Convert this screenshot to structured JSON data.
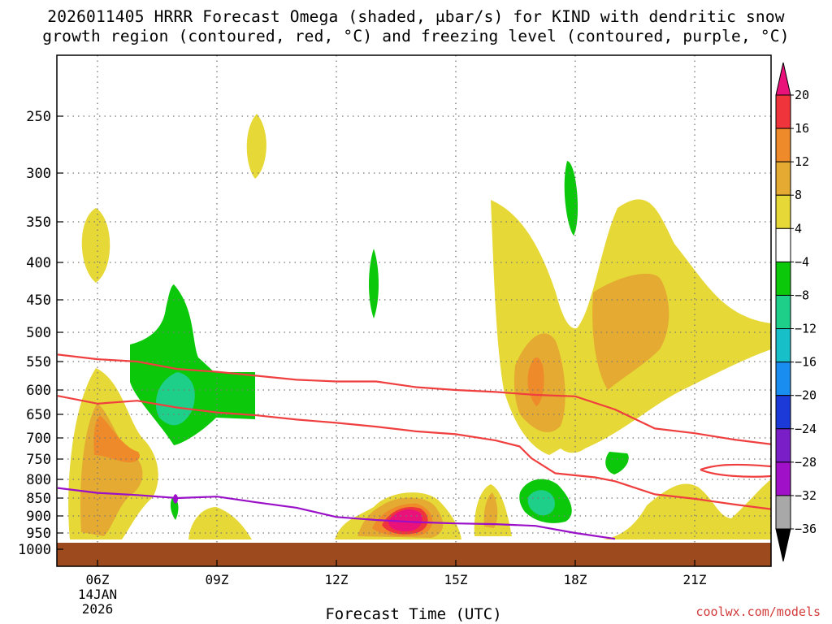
{
  "title_line1": "2026011405 HRRR Forecast Omega (shaded, μbar/s) for KIND with dendritic snow",
  "title_line2": "growth region (contoured, red, °C) and freezing level (contoured, purple, °C)",
  "credit": "coolwx.com/models",
  "colors": {
    "ground": "#9c4a1e",
    "dgz_contour": "#ef3f3f",
    "freezing_level": "#9a0fc8",
    "grid": "#777777"
  },
  "chart_data": {
    "type": "time-height",
    "xlabel": "Forecast Time (UTC)",
    "x_ticks": [
      {
        "hour": 6,
        "label": "06Z",
        "date_line1": "14JAN",
        "date_line2": "2026"
      },
      {
        "hour": 9,
        "label": "09Z"
      },
      {
        "hour": 12,
        "label": "12Z"
      },
      {
        "hour": 15,
        "label": "15Z"
      },
      {
        "hour": 18,
        "label": "18Z"
      },
      {
        "hour": 21,
        "label": "21Z"
      }
    ],
    "xlim_hours": [
      5,
      23
    ],
    "y_ticks_hpa": [
      250,
      300,
      350,
      400,
      450,
      500,
      550,
      600,
      650,
      700,
      750,
      800,
      850,
      900,
      950,
      1000
    ],
    "y_ticks": [
      "250",
      "300",
      "350",
      "400",
      "450",
      "500",
      "550",
      "600",
      "650",
      "700",
      "750",
      "800",
      "850",
      "900",
      "950",
      "1000"
    ],
    "ylim_hpa": [
      1000,
      200
    ],
    "surface_pressure_hpa": 970,
    "colorbar": {
      "units": "μbar/s",
      "labels": [
        "20",
        "16",
        "12",
        "8",
        "4",
        "−4",
        "−8",
        "−12",
        "−16",
        "−20",
        "−24",
        "−28",
        "−32",
        "−36"
      ],
      "bands": [
        {
          "from": 16,
          "to": 20,
          "color": "#f0343c"
        },
        {
          "from": 12,
          "to": 16,
          "color": "#ee8a2a"
        },
        {
          "from": 8,
          "to": 12,
          "color": "#e4aa32"
        },
        {
          "from": 4,
          "to": 8,
          "color": "#e6d836"
        },
        {
          "from": -4,
          "to": 4,
          "color": "#ffffff"
        },
        {
          "from": -8,
          "to": -4,
          "color": "#0bc80b"
        },
        {
          "from": -12,
          "to": -8,
          "color": "#1ecf8a"
        },
        {
          "from": -16,
          "to": -12,
          "color": "#17c0c8"
        },
        {
          "from": -20,
          "to": -16,
          "color": "#1a8ef0"
        },
        {
          "from": -24,
          "to": -20,
          "color": "#1c3ad8"
        },
        {
          "from": -28,
          "to": -24,
          "color": "#7a1ec8"
        },
        {
          "from": -32,
          "to": -28,
          "color": "#a010c8"
        },
        {
          "from": -36,
          "to": -32,
          "color": "#a8a8a8"
        }
      ],
      "over_color": "#e8127a",
      "under_color": "#000000"
    },
    "dgz_top_hpa": [
      [
        5.0,
        538
      ],
      [
        6.0,
        546
      ],
      [
        7.0,
        550
      ],
      [
        8.0,
        563
      ],
      [
        9.0,
        568
      ],
      [
        10.0,
        575
      ],
      [
        11.0,
        582
      ],
      [
        12.0,
        585
      ],
      [
        13.0,
        585
      ],
      [
        14.0,
        595
      ],
      [
        15.0,
        600
      ],
      [
        16.0,
        604
      ],
      [
        17.0,
        610
      ],
      [
        18.0,
        613
      ],
      [
        19.0,
        640
      ],
      [
        20.0,
        680
      ],
      [
        21.0,
        690
      ],
      [
        22.0,
        704
      ],
      [
        23.0,
        716
      ]
    ],
    "dgz_bottom_hpa": [
      [
        5.0,
        612
      ],
      [
        6.0,
        628
      ],
      [
        7.0,
        622
      ],
      [
        8.0,
        636
      ],
      [
        9.0,
        646
      ],
      [
        10.0,
        652
      ],
      [
        11.0,
        661
      ],
      [
        12.0,
        668
      ],
      [
        13.0,
        676
      ],
      [
        14.0,
        686
      ],
      [
        15.0,
        692
      ],
      [
        16.0,
        706
      ],
      [
        16.6,
        720
      ],
      [
        16.9,
        748
      ],
      [
        17.5,
        785
      ],
      [
        18.5,
        795
      ],
      [
        19.0,
        805
      ],
      [
        20.0,
        840
      ],
      [
        21.0,
        852
      ],
      [
        22.0,
        868
      ],
      [
        23.0,
        882
      ]
    ],
    "freezing_level_hpa": [
      [
        5.0,
        823
      ],
      [
        6.0,
        836
      ],
      [
        7.0,
        842
      ],
      [
        8.0,
        850
      ],
      [
        9.0,
        846
      ],
      [
        10.0,
        862
      ],
      [
        11.0,
        877
      ],
      [
        12.0,
        903
      ],
      [
        13.0,
        912
      ],
      [
        14.0,
        918
      ],
      [
        15.0,
        922
      ],
      [
        16.0,
        924
      ],
      [
        17.0,
        929
      ],
      [
        18.0,
        950
      ],
      [
        19.0,
        968
      ]
    ],
    "omega_areas": [
      {
        "center_hour": 6.4,
        "center_hpa": 800,
        "max_value": 15,
        "sign": "upward"
      },
      {
        "center_hour": 8.1,
        "center_hpa": 600,
        "min_value": -15,
        "sign": "downward"
      },
      {
        "center_hour": 14.0,
        "center_hpa": 900,
        "max_value": 21,
        "sign": "upward"
      },
      {
        "center_hour": 17.3,
        "center_hpa": 600,
        "max_value": 15,
        "sign": "upward"
      },
      {
        "center_hour": 19.9,
        "center_hpa": 450,
        "max_value": 10,
        "sign": "upward"
      },
      {
        "center_hour": 17.4,
        "center_hpa": 855,
        "min_value": -11,
        "sign": "downward"
      }
    ]
  }
}
